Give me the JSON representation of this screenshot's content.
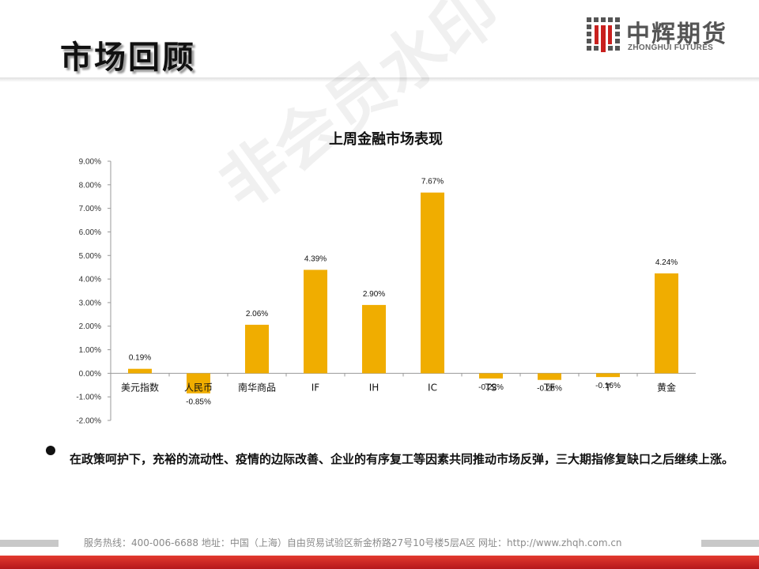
{
  "slide": {
    "title": "市场回顾",
    "watermark": "非会员水印",
    "logo_cn": "中辉期货",
    "logo_en": "ZHONGHUI FUTURES",
    "bullet_text": "在政策呵护下，充裕的流动性、疫情的边际改善、企业的有序复工等因素共同推动市场反弹，三大期指修复缺口之后继续上涨。",
    "footer": "服务热线：400-006-6688   地址：中国（上海）自由贸易试验区新金桥路27号10号楼5层A区   网址：http://www.zhqh.com.cn"
  },
  "colors": {
    "bar": "#F0AD00",
    "accent_red": "#C8201E",
    "logo_gray": "#555555"
  },
  "chart_data": {
    "type": "bar",
    "title": "上周金融市场表现",
    "categories": [
      "美元指数",
      "人民币",
      "南华商品",
      "IF",
      "IH",
      "IC",
      "TS",
      "TF",
      "T",
      "黄金"
    ],
    "values": [
      0.19,
      -0.85,
      2.06,
      4.39,
      2.9,
      7.67,
      -0.22,
      -0.28,
      -0.16,
      4.24
    ],
    "value_labels": [
      "0.19%",
      "-0.85%",
      "2.06%",
      "4.39%",
      "2.90%",
      "7.67%",
      "-0.22%",
      "-0.28%",
      "-0.16%",
      "4.24%"
    ],
    "yticks": [
      "9.00%",
      "8.00%",
      "7.00%",
      "6.00%",
      "5.00%",
      "4.00%",
      "3.00%",
      "2.00%",
      "1.00%",
      "0.00%",
      "-1.00%",
      "-2.00%"
    ],
    "ylim": [
      -2,
      9
    ],
    "grid": false,
    "legend": "none"
  }
}
